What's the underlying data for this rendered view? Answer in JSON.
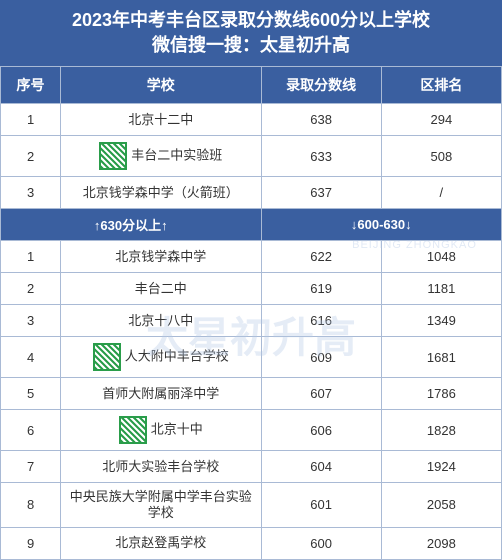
{
  "header": {
    "title_line1": "2023年中考丰台区录取分数线600分以上学校",
    "title_line2": "微信搜一搜：太星初升高"
  },
  "columns": {
    "num": "序号",
    "school": "学校",
    "score": "录取分数线",
    "rank": "区排名"
  },
  "colors": {
    "header_bg": "#3a5fa0",
    "header_text": "#ffffff",
    "border": "#a9bad5",
    "cell_bg": "#ffffff",
    "cell_text": "#333333"
  },
  "fonts": {
    "header_size": 18,
    "th_size": 14,
    "td_size": 13
  },
  "section1": {
    "rows": [
      {
        "num": "1",
        "school": "北京十二中",
        "score": "638",
        "rank": "294",
        "qr": false
      },
      {
        "num": "2",
        "school": "丰台二中实验班",
        "score": "633",
        "rank": "508",
        "qr": true
      },
      {
        "num": "3",
        "school": "北京钱学森中学（火箭班）",
        "score": "637",
        "rank": "/",
        "qr": false
      }
    ]
  },
  "divider": {
    "left": "↑630分以上↑",
    "right": "↓600-630↓"
  },
  "section2": {
    "rows": [
      {
        "num": "1",
        "school": "北京钱学森中学",
        "score": "622",
        "rank": "1048",
        "qr": false
      },
      {
        "num": "2",
        "school": "丰台二中",
        "score": "619",
        "rank": "1181",
        "qr": false
      },
      {
        "num": "3",
        "school": "北京十八中",
        "score": "616",
        "rank": "1349",
        "qr": false
      },
      {
        "num": "4",
        "school": "人大附中丰台学校",
        "score": "609",
        "rank": "1681",
        "qr": true
      },
      {
        "num": "5",
        "school": "首师大附属丽泽中学",
        "score": "607",
        "rank": "1786",
        "qr": false
      },
      {
        "num": "6",
        "school": "北京十中",
        "score": "606",
        "rank": "1828",
        "qr": true
      },
      {
        "num": "7",
        "school": "北师大实验丰台学校",
        "score": "604",
        "rank": "1924",
        "qr": false
      },
      {
        "num": "8",
        "school": "中央民族大学附属中学丰台实验学校",
        "score": "601",
        "rank": "2058",
        "qr": false
      },
      {
        "num": "9",
        "school": "北京赵登禹学校",
        "score": "600",
        "rank": "2098",
        "qr": false
      }
    ]
  },
  "watermark": {
    "text": "太星初升高",
    "sub": "BEIJING ZHONGKAO"
  }
}
